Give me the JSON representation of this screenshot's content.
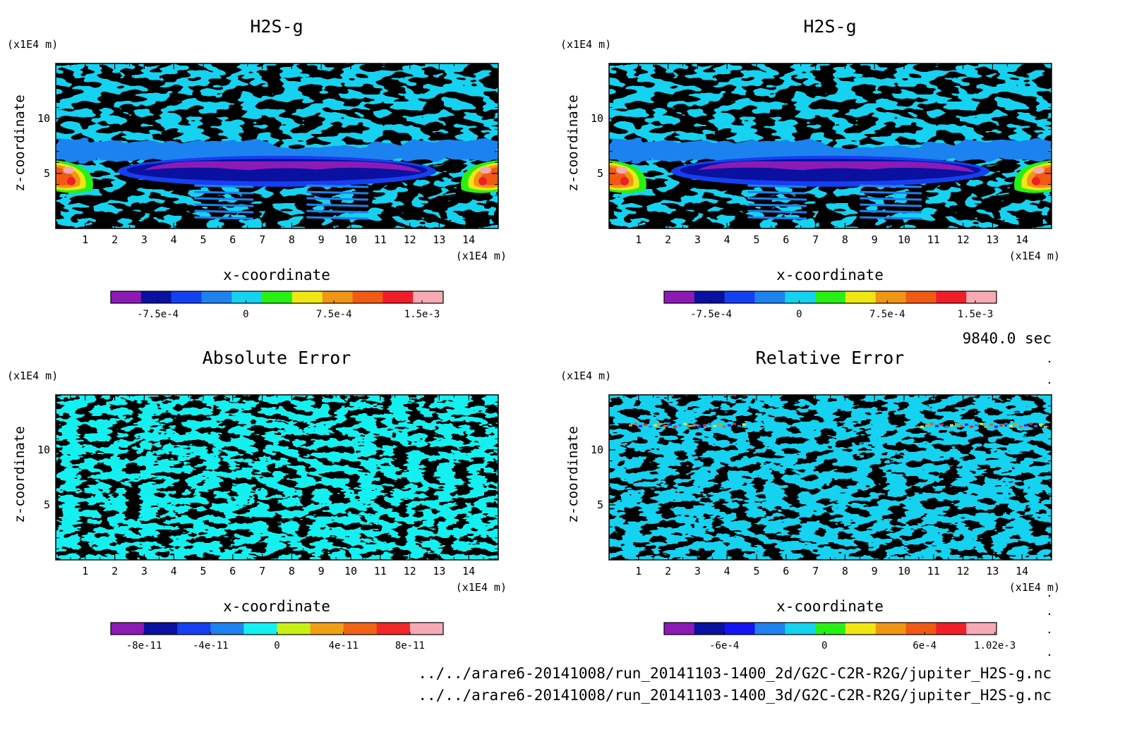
{
  "time_label": "9840.0 sec",
  "files": [
    "../../arare6-20141008/run_20141103-1400_2d/G2C-C2R-R2G/jupiter_H2S-g.nc",
    "../../arare6-20141008/run_20141103-1400_3d/G2C-C2R-R2G/jupiter_H2S-g.nc"
  ],
  "chart_data": [
    {
      "type": "heatmap",
      "title": "H2S-g",
      "xlabel": "x-coordinate",
      "ylabel": "z-coordinate",
      "x_unit": "(x1E4 m)",
      "y_unit": "(x1E4 m)",
      "xlim": [
        0,
        15
      ],
      "ylim": [
        0,
        15
      ],
      "x_ticks": [
        1,
        2,
        3,
        4,
        5,
        6,
        7,
        8,
        9,
        10,
        11,
        12,
        13,
        14
      ],
      "y_ticks": [
        5,
        10
      ],
      "colorbar": {
        "colors": [
          "#8c1ab4",
          "#0a10a0",
          "#1440f0",
          "#1e82ef",
          "#14d2f0",
          "#28f014",
          "#f0e614",
          "#f09614",
          "#f05a14",
          "#f01e28",
          "#f5aab4"
        ],
        "tick_labels": [
          "-7.5e-4",
          "0",
          "7.5e-4",
          "1.5e-3"
        ],
        "tick_values": [
          -0.00075,
          0,
          0.00075,
          0.0015
        ],
        "range": [
          -0.00115,
          0.00168
        ]
      },
      "field": {
        "background": "#14d2f0",
        "features": [
          {
            "kind": "layer",
            "z_center": 7.5,
            "amplitude": 0.0002,
            "label": "mid-blue band"
          },
          {
            "kind": "lens",
            "x_center": 7.5,
            "z_center": 5.3,
            "width": 9.0,
            "value": -0.0009
          },
          {
            "kind": "plume",
            "x_center": 0.4,
            "z_center": 4.8,
            "value": 0.0014
          },
          {
            "kind": "plume",
            "x_center": 14.6,
            "z_center": 4.8,
            "value": 0.0014
          }
        ]
      }
    },
    {
      "type": "heatmap",
      "title": "H2S-g",
      "xlabel": "x-coordinate",
      "ylabel": "z-coordinate",
      "x_unit": "(x1E4 m)",
      "y_unit": "(x1E4 m)",
      "xlim": [
        0,
        15
      ],
      "ylim": [
        0,
        15
      ],
      "x_ticks": [
        1,
        2,
        3,
        4,
        5,
        6,
        7,
        8,
        9,
        10,
        11,
        12,
        13,
        14
      ],
      "y_ticks": [
        5,
        10
      ],
      "colorbar": {
        "colors": [
          "#8c1ab4",
          "#0a10a0",
          "#1440f0",
          "#1e82ef",
          "#14d2f0",
          "#28f014",
          "#f0e614",
          "#f09614",
          "#f05a14",
          "#f01e28",
          "#f5aab4"
        ],
        "tick_labels": [
          "-7.5e-4",
          "0",
          "7.5e-4",
          "1.5e-3"
        ],
        "tick_values": [
          -0.00075,
          0,
          0.00075,
          0.0015
        ],
        "range": [
          -0.00115,
          0.00168
        ]
      },
      "field": {
        "background": "#14d2f0",
        "features": [
          {
            "kind": "layer",
            "z_center": 7.5,
            "amplitude": 0.0002
          },
          {
            "kind": "lens",
            "x_center": 7.5,
            "z_center": 5.3,
            "width": 9.0,
            "value": -0.0009
          },
          {
            "kind": "plume",
            "x_center": 0.4,
            "z_center": 4.8,
            "value": 0.0014
          },
          {
            "kind": "plume",
            "x_center": 14.6,
            "z_center": 4.8,
            "value": 0.0014
          }
        ]
      }
    },
    {
      "type": "heatmap",
      "title": "Absolute Error",
      "xlabel": "x-coordinate",
      "ylabel": "z-coordinate",
      "x_unit": "(x1E4 m)",
      "y_unit": "(x1E4 m)",
      "xlim": [
        0,
        15
      ],
      "ylim": [
        0,
        15
      ],
      "x_ticks": [
        1,
        2,
        3,
        4,
        5,
        6,
        7,
        8,
        9,
        10,
        11,
        12,
        13,
        14
      ],
      "y_ticks": [
        5,
        10
      ],
      "colorbar": {
        "colors": [
          "#8c1ab4",
          "#0a10a0",
          "#1440f0",
          "#1e82ef",
          "#14f0f0",
          "#c8f014",
          "#f0a014",
          "#f06414",
          "#f02828",
          "#f5aab4"
        ],
        "tick_labels": [
          "-8e-11",
          "-4e-11",
          "0",
          "4e-11",
          "8e-11"
        ],
        "tick_values": [
          -8e-11,
          -4e-11,
          0,
          4e-11,
          8e-11
        ],
        "range": [
          -1e-10,
          1e-10
        ]
      },
      "field": {
        "background": "#14f0f0",
        "dominant_values": [
          "0",
          "2e-11"
        ]
      }
    },
    {
      "type": "heatmap",
      "title": "Relative Error",
      "xlabel": "x-coordinate",
      "ylabel": "z-coordinate",
      "x_unit": "(x1E4 m)",
      "y_unit": "(x1E4 m)",
      "xlim": [
        0,
        15
      ],
      "ylim": [
        0,
        15
      ],
      "x_ticks": [
        1,
        2,
        3,
        4,
        5,
        6,
        7,
        8,
        9,
        10,
        11,
        12,
        13,
        14
      ],
      "y_ticks": [
        5,
        10
      ],
      "colorbar": {
        "colors": [
          "#8c1ab4",
          "#0a10a0",
          "#1414f0",
          "#1e82ef",
          "#14d2f0",
          "#28f014",
          "#f0e614",
          "#f09614",
          "#f05a14",
          "#f01e28",
          "#f5aab4"
        ],
        "tick_labels": [
          "-6e-4",
          "0",
          "6e-4",
          "1.02e-3"
        ],
        "tick_values": [
          -0.0006,
          0,
          0.0006,
          0.00102
        ],
        "range": [
          -0.00096,
          0.00103
        ]
      },
      "field": {
        "background": "#14d2f0",
        "dominant_values": [
          "0",
          "1e-4"
        ],
        "features": [
          {
            "kind": "stripe",
            "z_center": 12.2,
            "label": "noisy band"
          }
        ]
      }
    }
  ]
}
